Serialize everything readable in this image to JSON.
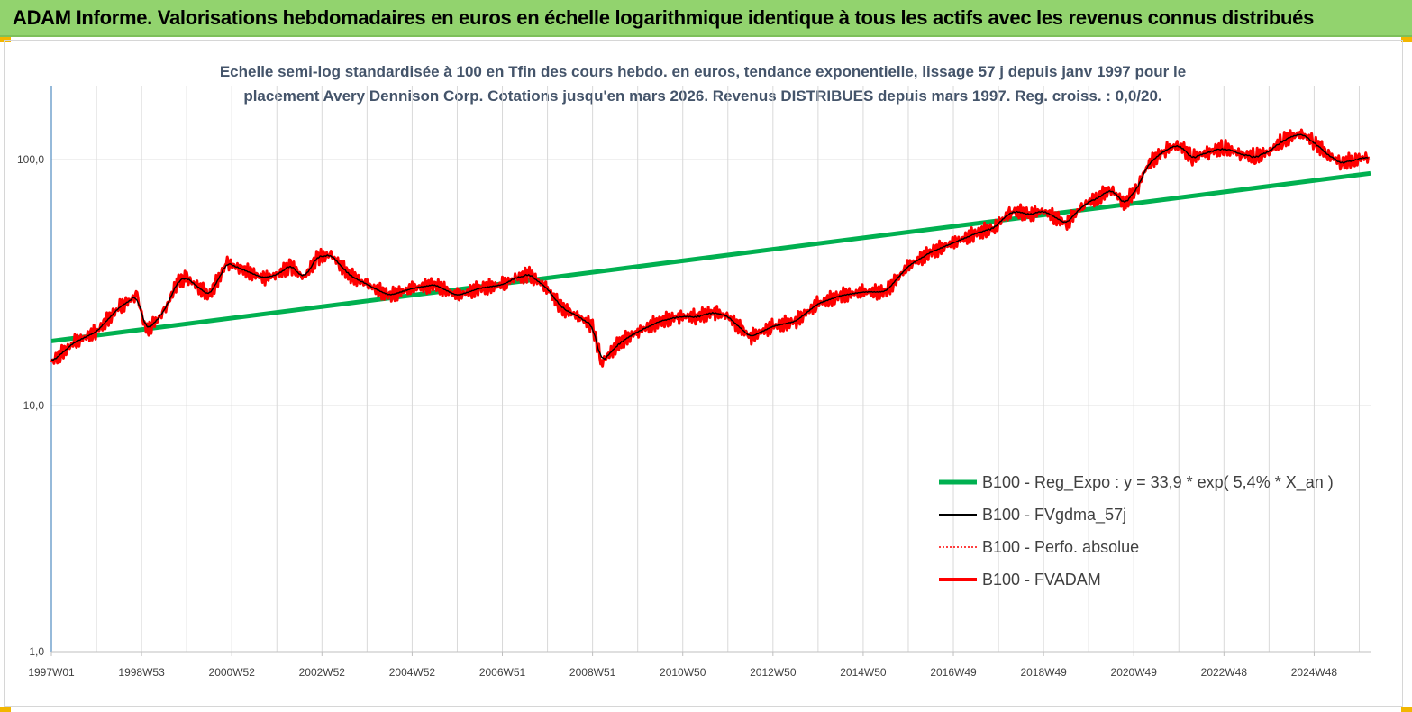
{
  "banner": {
    "title": "ADAM Informe. Valorisations hebdomadaires en euros en échelle logarithmique identique à tous les actifs avec les revenus connus distribués"
  },
  "colors": {
    "banner_bg": "#92d36e",
    "accent_corner": "#f2b600",
    "trend": "#00b050",
    "mma": "#000000",
    "price": "#ff0000",
    "axis": "#2e75b6",
    "grid": "#d9d9d9"
  },
  "chart_data": {
    "type": "line",
    "title_line1": "Echelle semi-log standardisée à 100 en Tfin des cours hebdo. en euros, tendance exponentielle, lissage 57 j depuis janv 1997 pour le",
    "title_line2": "placement Avery Dennison Corp. Cotations jusqu'en mars 2026. Revenus DISTRIBUES depuis mars 1997. Reg. croiss. : 0,0/20.",
    "y_scale": "log",
    "ylim": [
      1,
      200
    ],
    "y_ticks": [
      {
        "value": 1,
        "label": "1,0"
      },
      {
        "value": 10,
        "label": "10,0"
      },
      {
        "value": 100,
        "label": "100,0"
      }
    ],
    "xlim": [
      1997.0,
      2026.25
    ],
    "x_ticks": [
      {
        "value": 1997.0,
        "label": "1997W01"
      },
      {
        "value": 1999.0,
        "label": "1998W53"
      },
      {
        "value": 2001.0,
        "label": "2000W52"
      },
      {
        "value": 2003.0,
        "label": "2002W52"
      },
      {
        "value": 2005.0,
        "label": "2004W52"
      },
      {
        "value": 2007.0,
        "label": "2006W51"
      },
      {
        "value": 2009.0,
        "label": "2008W51"
      },
      {
        "value": 2011.0,
        "label": "2010W50"
      },
      {
        "value": 2013.0,
        "label": "2012W50"
      },
      {
        "value": 2015.0,
        "label": "2014W50"
      },
      {
        "value": 2017.0,
        "label": "2016W49"
      },
      {
        "value": 2019.0,
        "label": "2018W49"
      },
      {
        "value": 2021.0,
        "label": "2020W49"
      },
      {
        "value": 2023.0,
        "label": "2022W48"
      },
      {
        "value": 2025.0,
        "label": "2024W48"
      }
    ],
    "grid": "vertical and horizontal",
    "legend_position": "bottom-right",
    "series": [
      {
        "name": "B100 - Reg_Expo : y = 33,9 * exp( 5,4% *  X_an )",
        "style": "trend",
        "x": [
          1997.0,
          2026.25
        ],
        "y": [
          18.3,
          88.0
        ]
      },
      {
        "name": "B100 - FVgdma_57j",
        "style": "mma"
      },
      {
        "name": "B100 - Perfo. absolue",
        "style": "dotted"
      },
      {
        "name": "B100 - FVADAM",
        "style": "price",
        "x": [
          1997.0,
          1997.5,
          1998.0,
          1998.5,
          1998.9,
          1999.1,
          1999.5,
          1999.8,
          2000.0,
          2000.5,
          2000.9,
          2001.2,
          2001.7,
          2002.0,
          2002.3,
          2002.6,
          2002.9,
          2003.2,
          2003.6,
          2004.0,
          2004.5,
          2005.0,
          2005.5,
          2006.0,
          2006.5,
          2007.0,
          2007.3,
          2007.6,
          2008.0,
          2008.3,
          2008.7,
          2009.0,
          2009.2,
          2009.6,
          2010.0,
          2010.5,
          2010.9,
          2011.3,
          2011.7,
          2012.0,
          2012.5,
          2013.0,
          2013.5,
          2014.0,
          2014.5,
          2015.0,
          2015.5,
          2016.0,
          2016.5,
          2017.0,
          2017.5,
          2017.9,
          2018.3,
          2018.7,
          2019.0,
          2019.5,
          2019.9,
          2020.2,
          2020.5,
          2020.8,
          2021.1,
          2021.3,
          2021.7,
          2022.0,
          2022.3,
          2022.7,
          2023.0,
          2023.4,
          2023.7,
          2024.0,
          2024.3,
          2024.7,
          2025.0,
          2025.3,
          2025.6,
          2025.9,
          2026.2
        ],
        "y": [
          15,
          18,
          20,
          25,
          28,
          20,
          24,
          32,
          33,
          28,
          38,
          36,
          33,
          34,
          37,
          33,
          40,
          41,
          34,
          31,
          28,
          30,
          31,
          28,
          30,
          31,
          33,
          34,
          30,
          25,
          23,
          21,
          15,
          18,
          20,
          22,
          23,
          23,
          24,
          23,
          19,
          21,
          22,
          26,
          28,
          29,
          29,
          37,
          42,
          46,
          50,
          53,
          62,
          60,
          62,
          55,
          66,
          70,
          76,
          66,
          78,
          95,
          110,
          115,
          102,
          108,
          112,
          105,
          103,
          108,
          120,
          128,
          118,
          105,
          97,
          100,
          103
        ]
      }
    ]
  }
}
